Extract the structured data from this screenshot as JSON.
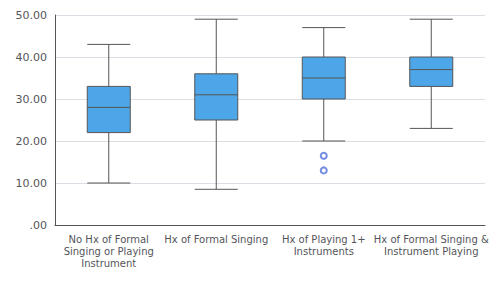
{
  "chart_data": {
    "type": "box",
    "categories": [
      "No Hx of Formal\nSinging or Playing\nInstrument",
      "Hx of Formal Singing",
      "Hx of Playing 1+\nInstruments",
      "Hx of Formal Singing &\nInstrument Playing"
    ],
    "boxes": [
      {
        "whislo": 10.0,
        "q1": 22.0,
        "med": 28.0,
        "q3": 33.0,
        "whishi": 43.0
      },
      {
        "whislo": 8.5,
        "q1": 25.0,
        "med": 31.0,
        "q3": 36.0,
        "whishi": 49.0
      },
      {
        "whislo": 20.0,
        "q1": 30.0,
        "med": 35.0,
        "q3": 40.0,
        "whishi": 47.0
      },
      {
        "whislo": 23.0,
        "q1": 33.0,
        "med": 37.0,
        "q3": 40.0,
        "whishi": 49.0
      }
    ],
    "fliers": [
      [],
      [],
      [
        16.5,
        13.0
      ],
      []
    ],
    "color": "#4da6e8",
    "ylim": [
      0,
      50
    ],
    "yticks": [
      {
        "value": 0,
        "label": ".00"
      },
      {
        "value": 10,
        "label": "10.00"
      },
      {
        "value": 20,
        "label": "20.00"
      },
      {
        "value": 30,
        "label": "30.00"
      },
      {
        "value": 40,
        "label": "40.00"
      },
      {
        "value": 50,
        "label": "50.00"
      }
    ],
    "grid": true
  }
}
